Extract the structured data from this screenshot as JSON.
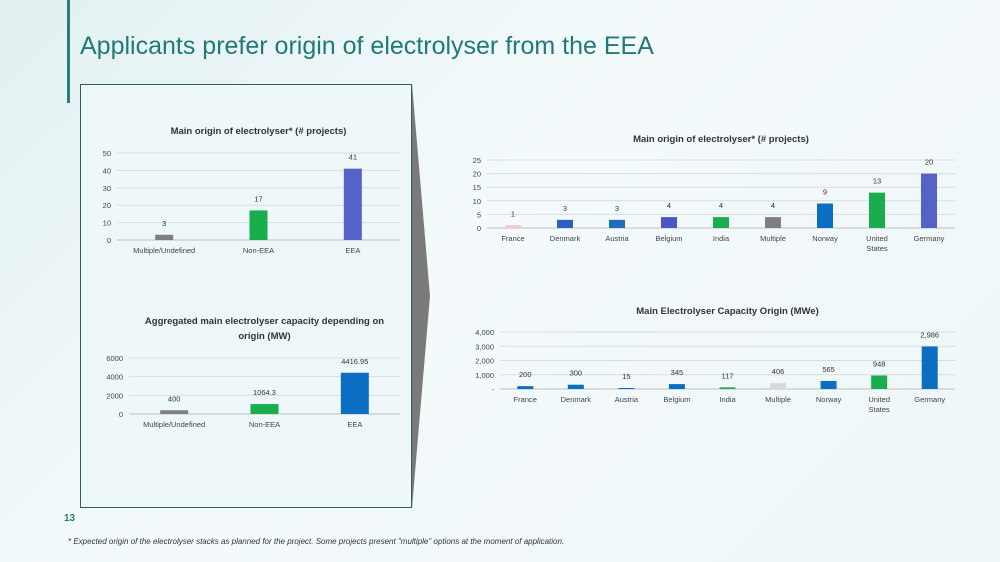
{
  "slide": {
    "title": "Applicants prefer origin of electrolyser from the EEA",
    "page_number": "13",
    "footnote": "* Expected origin of the electrolyser stacks as planned for the project. Some projects present \"multiple\" options at the moment of application."
  },
  "chart_data": [
    {
      "id": "left_top",
      "type": "bar",
      "title": "Main origin of electrolyser* (# projects)",
      "categories": [
        "Multiple/Undefined",
        "Non-EEA",
        "EEA"
      ],
      "values": [
        3,
        17,
        41
      ],
      "labels": [
        "3",
        "17",
        "41"
      ],
      "colors": [
        "#7f7f7f",
        "#1aad4e",
        "#5563c9"
      ],
      "ylim": [
        0,
        50
      ],
      "yticks": [
        "0",
        "10",
        "20",
        "30",
        "40",
        "50"
      ],
      "grid": true
    },
    {
      "id": "left_bottom",
      "type": "bar",
      "title": [
        "Aggregated main electrolyser capacity depending on",
        "origin (MW)"
      ],
      "categories": [
        "Multiple/Undefined",
        "Non-EEA",
        "EEA"
      ],
      "values": [
        400,
        1064.3,
        4416.95
      ],
      "labels": [
        "400",
        "1064.3",
        "4416.95"
      ],
      "colors": [
        "#7f7f7f",
        "#1aad4e",
        "#0a6fc2"
      ],
      "ylim": [
        0,
        6000
      ],
      "yticks": [
        "0",
        "2000",
        "4000",
        "6000"
      ],
      "grid": true
    },
    {
      "id": "right_top",
      "type": "bar",
      "title": "Main origin of electrolyser* (# projects)",
      "categories": [
        "France",
        "Denmark",
        "Austria",
        "Belgium",
        "India",
        "Multiple",
        "Norway",
        "United States",
        "Germany"
      ],
      "values": [
        1,
        3,
        3,
        4,
        4,
        4,
        9,
        13,
        20
      ],
      "labels": [
        "1",
        "3",
        "3",
        "4",
        "4",
        "4",
        "9",
        "13",
        "20"
      ],
      "colors": [
        "#f2c9c9",
        "#2f5fbf",
        "#1f6fb8",
        "#4a55c8",
        "#1aad4e",
        "#7f7f7f",
        "#0a6fc2",
        "#1aad4e",
        "#5563c9"
      ],
      "ylim": [
        0,
        25
      ],
      "yticks": [
        "0",
        "5",
        "10",
        "15",
        "20",
        "25"
      ],
      "grid": true
    },
    {
      "id": "right_bottom",
      "type": "bar",
      "title": "Main Electrolyser Capacity Origin (MWe)",
      "categories": [
        "France",
        "Denmark",
        "Austria",
        "Belgium",
        "India",
        "Multiple",
        "Norway",
        "United States",
        "Germany"
      ],
      "values": [
        200,
        300,
        15,
        345,
        117,
        406,
        565,
        948,
        2986
      ],
      "labels": [
        "200",
        "300",
        "15",
        "345",
        "117",
        "406",
        "565",
        "948",
        "2,986"
      ],
      "colors": [
        "#0a6fc2",
        "#0a6fc2",
        "#0a6fc2",
        "#0a6fc2",
        "#1aad4e",
        "#d9d9d9",
        "#0a6fc2",
        "#1aad4e",
        "#0a6fc2"
      ],
      "ylim": [
        0,
        4000
      ],
      "yticks": [
        "-",
        "1,000",
        "2,000",
        "3,000",
        "4,000"
      ],
      "grid": true
    }
  ]
}
